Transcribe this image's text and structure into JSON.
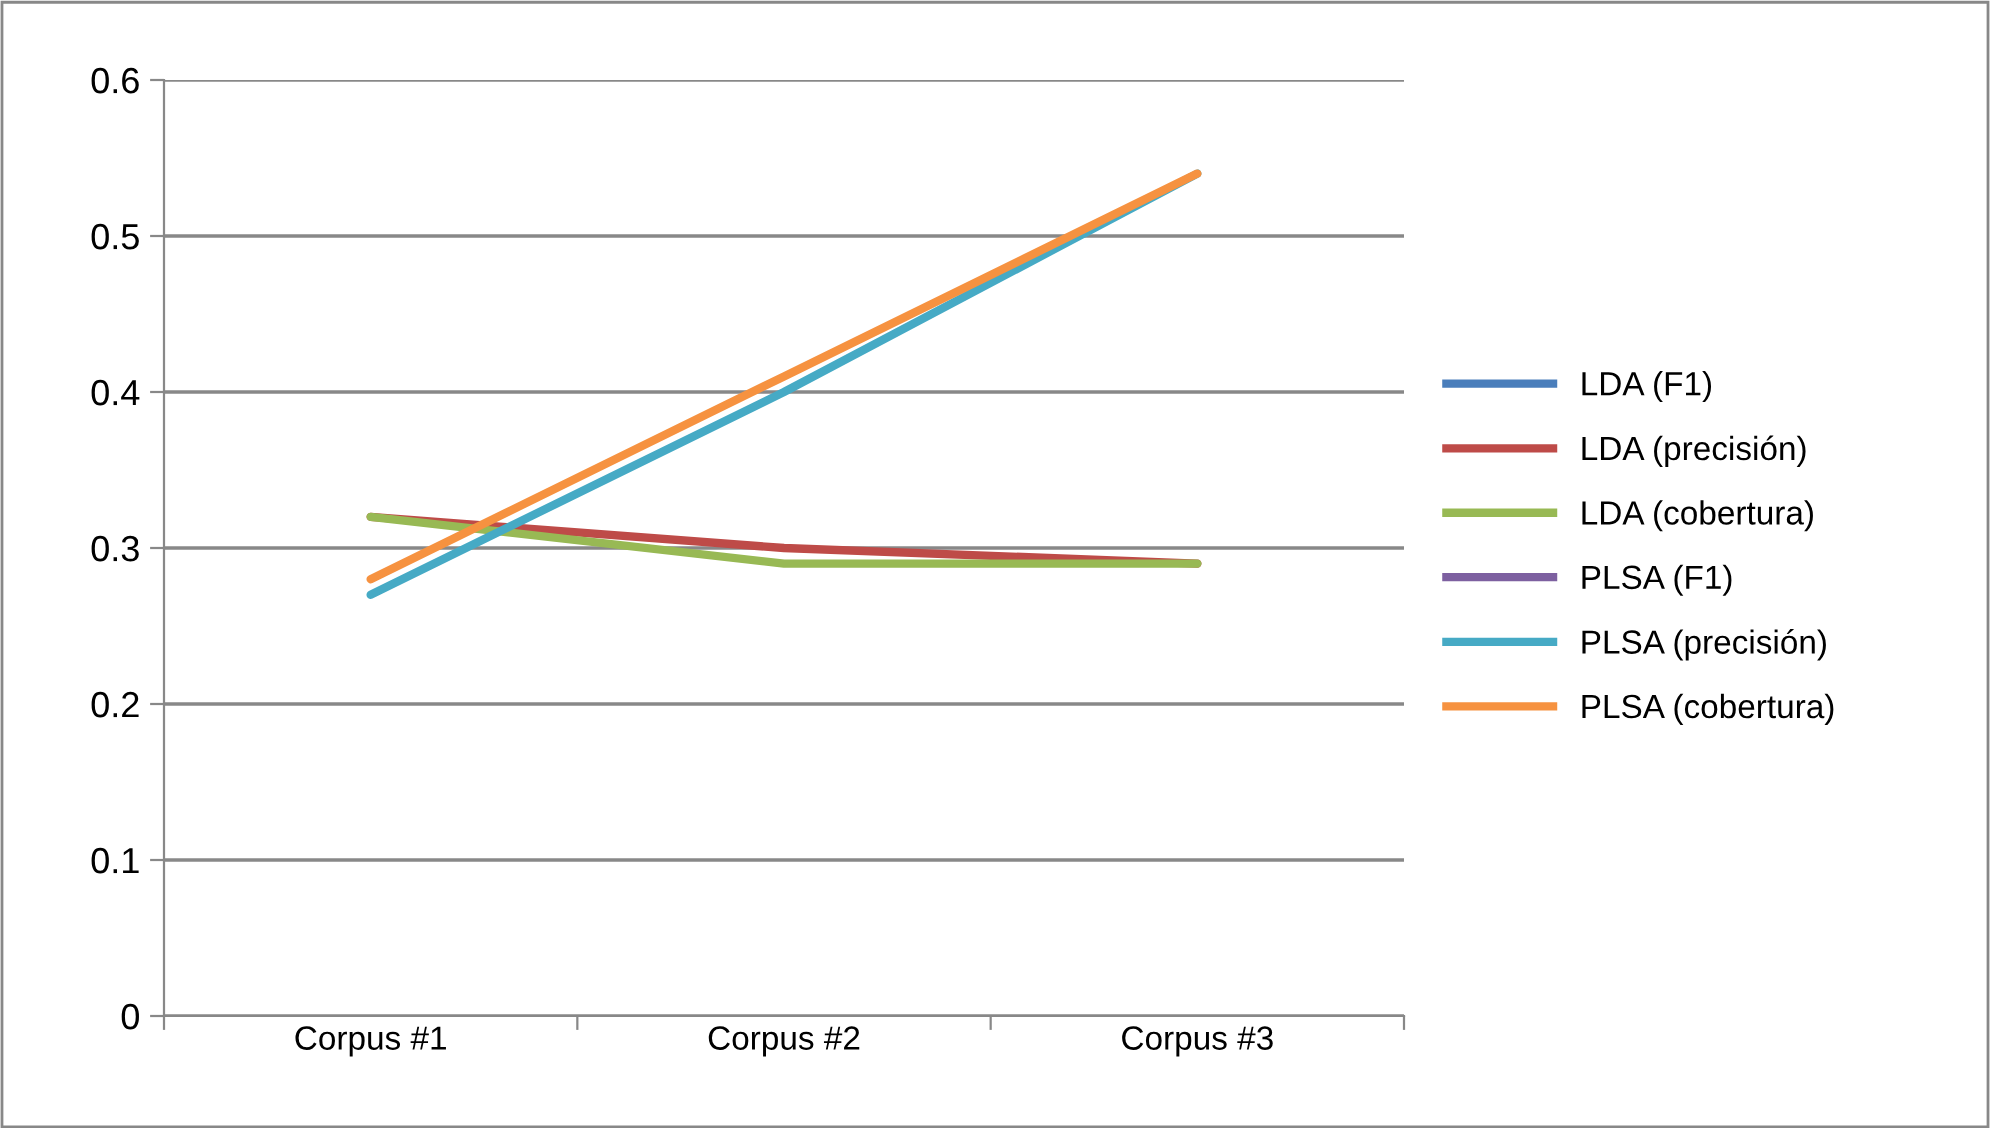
{
  "chart_data": {
    "type": "line",
    "categories": [
      "Corpus #1",
      "Corpus #2",
      "Corpus #3"
    ],
    "series": [
      {
        "name": "LDA (F1)",
        "color": "#4a7ebb",
        "values": [
          null,
          null,
          null
        ]
      },
      {
        "name": "LDA (precisión)",
        "color": "#be4b48",
        "values": [
          0.32,
          0.3,
          0.29
        ]
      },
      {
        "name": "LDA (cobertura)",
        "color": "#98b954",
        "values": [
          0.32,
          0.29,
          0.29
        ]
      },
      {
        "name": "PLSA (F1)",
        "color": "#7d60a0",
        "values": [
          null,
          null,
          null
        ]
      },
      {
        "name": "PLSA (precisión)",
        "color": "#46aac5",
        "values": [
          0.27,
          0.4,
          0.54
        ]
      },
      {
        "name": "PLSA (cobertura)",
        "color": "#f69240",
        "values": [
          0.28,
          0.41,
          0.54
        ]
      }
    ],
    "ylim": [
      0,
      0.6
    ],
    "yticks": [
      0,
      0.1,
      0.2,
      0.3,
      0.4,
      0.5,
      0.6
    ],
    "grid": "y",
    "legend": "right",
    "marker": "none",
    "line_style": "solid"
  }
}
